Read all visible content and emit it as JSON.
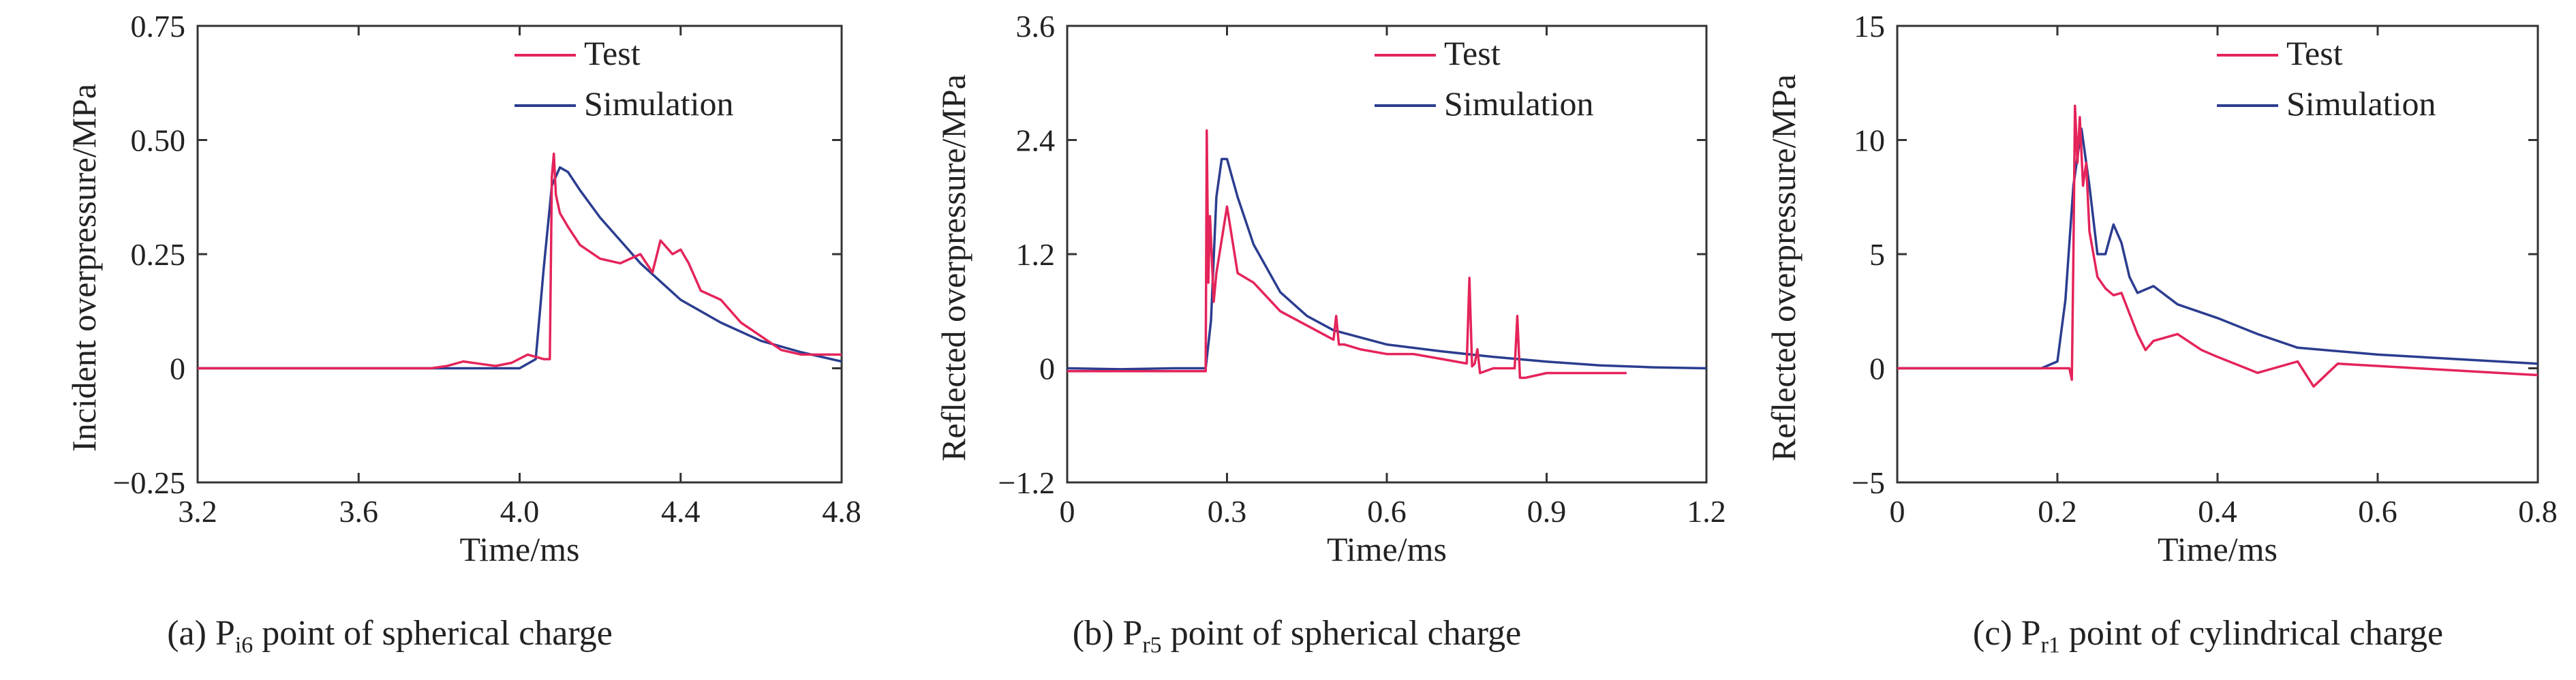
{
  "colors": {
    "test": "#e4245a",
    "simulation": "#2b3d8f",
    "axis": "#333333"
  },
  "captions": [
    {
      "prefix": "(a) P",
      "sub": "i6",
      "suffix": " point of spherical charge"
    },
    {
      "prefix": "(b) P",
      "sub": "r5",
      "suffix": " point of spherical charge"
    },
    {
      "prefix": "(c) P",
      "sub": "r1",
      "suffix": " point of cylindrical charge"
    }
  ],
  "chart_data": [
    {
      "type": "line",
      "xlabel": "Time/ms",
      "ylabel": "Incident overpressure/MPa",
      "xlim": [
        3.2,
        4.8
      ],
      "ylim": [
        -0.25,
        0.75
      ],
      "xticks": [
        "3.2",
        "3.6",
        "4.0",
        "4.4",
        "4.8"
      ],
      "xtick_values": [
        3.2,
        3.6,
        4.0,
        4.4,
        4.8
      ],
      "yticks": [
        "−0.25",
        "0",
        "0.25",
        "0.50",
        "0.75"
      ],
      "ytick_values": [
        -0.25,
        0,
        0.25,
        0.5,
        0.75
      ],
      "legend": "top-right",
      "series": [
        {
          "name": "Test",
          "color": "#e4245a",
          "x": [
            3.2,
            3.78,
            3.82,
            3.86,
            3.9,
            3.94,
            3.98,
            4.02,
            4.06,
            4.075,
            4.08,
            4.085,
            4.09,
            4.1,
            4.12,
            4.15,
            4.2,
            4.25,
            4.3,
            4.33,
            4.35,
            4.38,
            4.4,
            4.42,
            4.45,
            4.5,
            4.55,
            4.6,
            4.65,
            4.7,
            4.75,
            4.8
          ],
          "y": [
            0,
            0,
            0.005,
            0.015,
            0.01,
            0.005,
            0.012,
            0.03,
            0.02,
            0.02,
            0.42,
            0.47,
            0.38,
            0.34,
            0.31,
            0.27,
            0.24,
            0.23,
            0.25,
            0.21,
            0.28,
            0.25,
            0.26,
            0.23,
            0.17,
            0.15,
            0.1,
            0.07,
            0.04,
            0.03,
            0.03,
            0.03
          ]
        },
        {
          "name": "Simulation",
          "color": "#2b3d8f",
          "x": [
            3.2,
            3.9,
            4.0,
            4.04,
            4.06,
            4.08,
            4.1,
            4.12,
            4.15,
            4.2,
            4.25,
            4.3,
            4.35,
            4.4,
            4.5,
            4.6,
            4.7,
            4.8
          ],
          "y": [
            0,
            0,
            0,
            0.02,
            0.22,
            0.4,
            0.44,
            0.43,
            0.39,
            0.33,
            0.28,
            0.23,
            0.19,
            0.15,
            0.1,
            0.06,
            0.035,
            0.015
          ]
        }
      ]
    },
    {
      "type": "line",
      "xlabel": "Time/ms",
      "ylabel": "Reflected overpressure/MPa",
      "xlim": [
        0,
        1.2
      ],
      "ylim": [
        -1.2,
        3.6
      ],
      "xticks": [
        "0",
        "0.3",
        "0.6",
        "0.9",
        "1.2"
      ],
      "xtick_values": [
        0,
        0.3,
        0.6,
        0.9,
        1.2
      ],
      "yticks": [
        "−1.2",
        "0",
        "1.2",
        "2.4",
        "3.6"
      ],
      "ytick_values": [
        -1.2,
        0,
        1.2,
        2.4,
        3.6
      ],
      "legend": "top-right",
      "series": [
        {
          "name": "Test",
          "color": "#e4245a",
          "x": [
            0,
            0.1,
            0.2,
            0.26,
            0.262,
            0.265,
            0.268,
            0.275,
            0.28,
            0.3,
            0.32,
            0.35,
            0.4,
            0.45,
            0.5,
            0.505,
            0.51,
            0.52,
            0.55,
            0.6,
            0.65,
            0.7,
            0.75,
            0.755,
            0.76,
            0.765,
            0.77,
            0.775,
            0.8,
            0.84,
            0.845,
            0.85,
            0.855,
            0.86,
            0.9,
            1.0,
            1.05
          ],
          "y": [
            -0.03,
            -0.03,
            -0.03,
            -0.03,
            2.5,
            0.9,
            1.6,
            0.7,
            1.0,
            1.7,
            1.0,
            0.9,
            0.6,
            0.45,
            0.3,
            0.55,
            0.25,
            0.25,
            0.2,
            0.15,
            0.15,
            0.1,
            0.05,
            0.95,
            0.02,
            0.05,
            0.2,
            -0.05,
            0.0,
            0.0,
            0.55,
            -0.1,
            -0.1,
            -0.1,
            -0.05,
            -0.05,
            -0.05
          ]
        },
        {
          "name": "Simulation",
          "color": "#2b3d8f",
          "x": [
            0,
            0.1,
            0.2,
            0.26,
            0.27,
            0.28,
            0.29,
            0.3,
            0.32,
            0.35,
            0.4,
            0.45,
            0.5,
            0.6,
            0.7,
            0.8,
            0.9,
            1.0,
            1.1,
            1.2
          ],
          "y": [
            0,
            -0.01,
            0,
            0,
            0.5,
            1.8,
            2.2,
            2.2,
            1.8,
            1.3,
            0.8,
            0.55,
            0.4,
            0.25,
            0.18,
            0.12,
            0.07,
            0.03,
            0.01,
            0.0
          ]
        }
      ]
    },
    {
      "type": "line",
      "xlabel": "Time/ms",
      "ylabel": "Reflected overpressure/MPa",
      "xlim": [
        0,
        0.8
      ],
      "ylim": [
        -5,
        15
      ],
      "xticks": [
        "0",
        "0.2",
        "0.4",
        "0.6",
        "0.8"
      ],
      "xtick_values": [
        0,
        0.2,
        0.4,
        0.6,
        0.8
      ],
      "yticks": [
        "−5",
        "0",
        "5",
        "10",
        "15"
      ],
      "ytick_values": [
        -5,
        0,
        5,
        10,
        15
      ],
      "legend": "top-right",
      "series": [
        {
          "name": "Test",
          "color": "#e4245a",
          "x": [
            0,
            0.2,
            0.215,
            0.218,
            0.22,
            0.222,
            0.225,
            0.228,
            0.232,
            0.236,
            0.24,
            0.245,
            0.25,
            0.26,
            0.27,
            0.28,
            0.3,
            0.31,
            0.32,
            0.35,
            0.38,
            0.4,
            0.45,
            0.5,
            0.52,
            0.55,
            0.6,
            0.65,
            0.7,
            0.75,
            0.8
          ],
          "y": [
            0,
            0,
            0,
            -0.5,
            5,
            11.5,
            9,
            11,
            8,
            9,
            6,
            5,
            4,
            3.5,
            3.2,
            3.3,
            1.5,
            0.8,
            1.2,
            1.5,
            0.8,
            0.5,
            -0.2,
            0.3,
            -0.8,
            0.2,
            0.1,
            0.0,
            -0.1,
            -0.2,
            -0.3
          ]
        },
        {
          "name": "Simulation",
          "color": "#2b3d8f",
          "x": [
            0,
            0.18,
            0.2,
            0.21,
            0.22,
            0.23,
            0.24,
            0.25,
            0.26,
            0.27,
            0.28,
            0.29,
            0.3,
            0.32,
            0.35,
            0.4,
            0.45,
            0.5,
            0.6,
            0.7,
            0.8
          ],
          "y": [
            0,
            0,
            0.3,
            3,
            8,
            10.5,
            8,
            5,
            5,
            6.3,
            5.5,
            4,
            3.3,
            3.6,
            2.8,
            2.2,
            1.5,
            0.9,
            0.6,
            0.4,
            0.2
          ]
        }
      ]
    }
  ]
}
